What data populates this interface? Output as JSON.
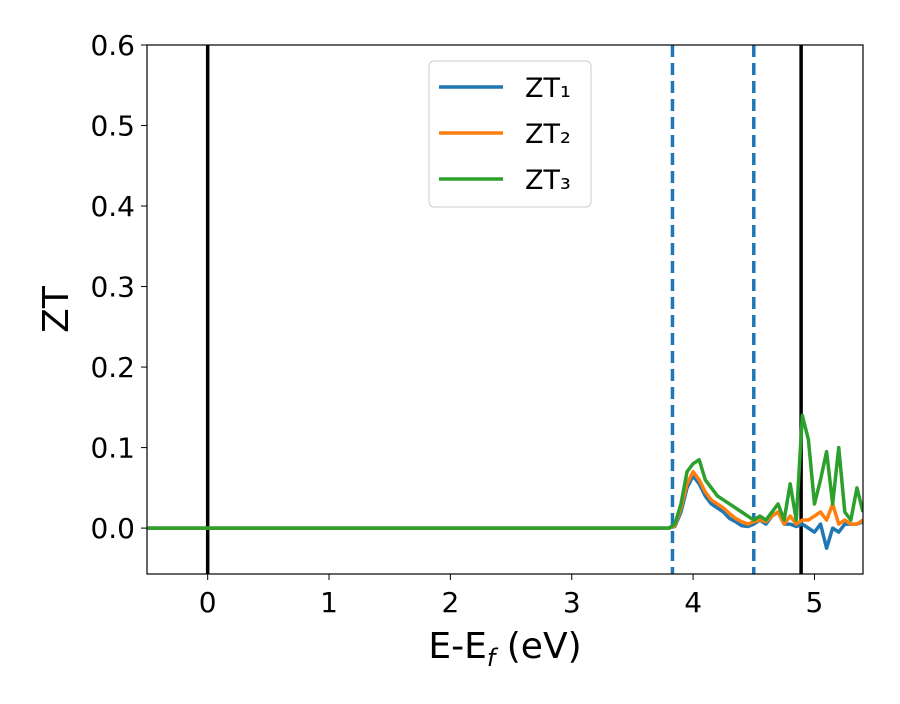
{
  "chart_data": {
    "type": "line",
    "x_label": [
      "E-E",
      "f",
      " (eV)"
    ],
    "y_label": "ZT",
    "x": [
      -0.5,
      3.8,
      3.85,
      3.9,
      3.95,
      4.0,
      4.05,
      4.1,
      4.15,
      4.2,
      4.25,
      4.3,
      4.35,
      4.4,
      4.45,
      4.5,
      4.55,
      4.6,
      4.65,
      4.7,
      4.75,
      4.8,
      4.85,
      4.9,
      4.95,
      5.0,
      5.05,
      5.1,
      5.15,
      5.2,
      5.25,
      5.3,
      5.35,
      5.4
    ],
    "series": [
      {
        "name": "ZT₁",
        "color": "#1f77b4",
        "values": [
          0,
          0,
          0.002,
          0.02,
          0.05,
          0.065,
          0.055,
          0.04,
          0.03,
          0.025,
          0.02,
          0.012,
          0.008,
          0.003,
          0.002,
          0.005,
          0.01,
          0.005,
          0.015,
          0.02,
          0.005,
          0.005,
          0.002,
          0.005,
          0.0,
          -0.005,
          0.005,
          -0.025,
          0.0,
          -0.005,
          0.005,
          0.005,
          0.005,
          0.008
        ]
      },
      {
        "name": "ZT₂",
        "color": "#ff7f0e",
        "values": [
          0,
          0,
          0.003,
          0.025,
          0.055,
          0.07,
          0.06,
          0.045,
          0.035,
          0.03,
          0.025,
          0.018,
          0.012,
          0.008,
          0.005,
          0.008,
          0.01,
          0.008,
          0.015,
          0.02,
          0.005,
          0.015,
          0.005,
          0.01,
          0.01,
          0.015,
          0.02,
          0.01,
          0.03,
          0.005,
          0.01,
          0.005,
          0.005,
          0.01
        ]
      },
      {
        "name": "ZT₃",
        "color": "#2ca02c",
        "values": [
          0,
          0,
          0.005,
          0.03,
          0.07,
          0.08,
          0.085,
          0.06,
          0.05,
          0.04,
          0.035,
          0.03,
          0.025,
          0.02,
          0.015,
          0.01,
          0.015,
          0.01,
          0.02,
          0.03,
          0.01,
          0.055,
          0.01,
          0.14,
          0.11,
          0.03,
          0.06,
          0.095,
          0.03,
          0.1,
          0.02,
          0.01,
          0.05,
          0.02
        ]
      }
    ],
    "vlines": [
      {
        "x": 0,
        "color": "#000000",
        "dashed": false
      },
      {
        "x": 3.83,
        "color": "#1f77b4",
        "dashed": true
      },
      {
        "x": 4.5,
        "color": "#1f77b4",
        "dashed": true
      },
      {
        "x": 4.89,
        "color": "#000000",
        "dashed": false
      }
    ],
    "xlim": [
      -0.5,
      5.4
    ],
    "ylim": [
      -0.057,
      0.6
    ],
    "xticks": [
      0,
      1,
      2,
      3,
      4,
      5
    ],
    "yticks": [
      {
        "value": 0,
        "label": "0.0"
      },
      0.1,
      0.2,
      0.3,
      0.4,
      0.5,
      0.6
    ],
    "legend": "upper-center"
  }
}
